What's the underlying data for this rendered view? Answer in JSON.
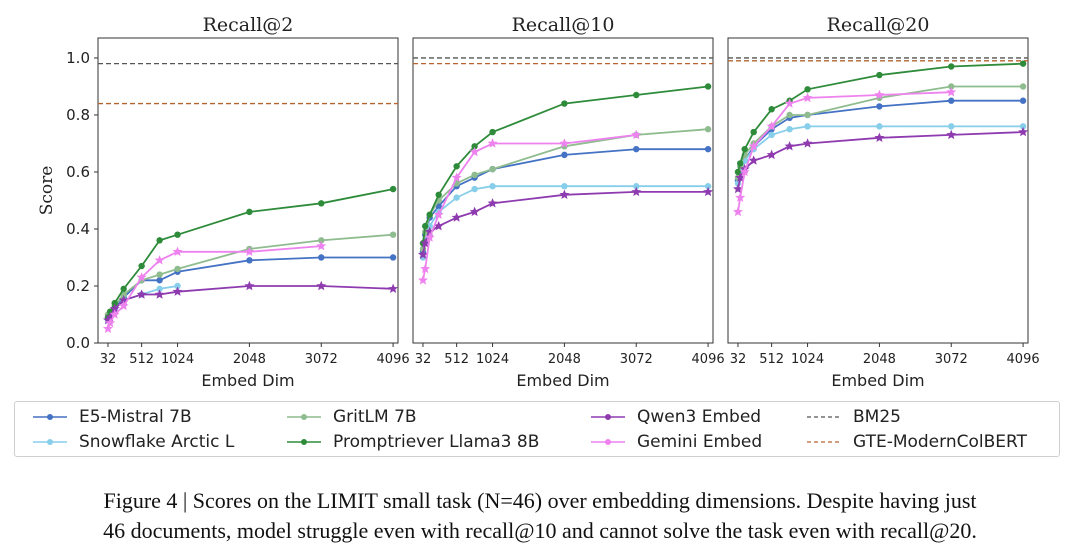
{
  "chart_data": [
    {
      "type": "line",
      "title": "Recall@2",
      "xlabel": "Embed Dim",
      "ylabel": "Score",
      "ylim": [
        0,
        1.07
      ],
      "xlim": [
        -110,
        4166
      ],
      "xticks": [
        32,
        512,
        1024,
        2048,
        3072,
        4096
      ],
      "xtick_labels": [
        "32",
        "512",
        "1024",
        "2048",
        "3072",
        "4096"
      ],
      "yticks": [
        0.0,
        0.2,
        0.4,
        0.6,
        0.8,
        1.0
      ],
      "ytick_labels": [
        "0.0",
        "0.2",
        "0.4",
        "0.6",
        "0.8",
        "1.0"
      ],
      "grid": false,
      "hlines": [
        {
          "name": "BM25",
          "y": 0.98,
          "color": "#555555"
        },
        {
          "name": "GTE-ModernColBERT",
          "y": 0.84,
          "color": "#b5652d"
        }
      ],
      "series": [
        {
          "name": "E5-Mistral 7B",
          "x": [
            32,
            64,
            128,
            256,
            512,
            768,
            1024,
            2048,
            3072,
            4096
          ],
          "y": [
            0.09,
            0.1,
            0.12,
            0.16,
            0.22,
            0.22,
            0.25,
            0.29,
            0.3,
            0.3
          ]
        },
        {
          "name": "Snowflake Arctic L",
          "x": [
            32,
            64,
            128,
            256,
            512,
            768,
            1024
          ],
          "y": [
            0.08,
            0.1,
            0.12,
            0.15,
            0.17,
            0.19,
            0.2
          ]
        },
        {
          "name": "GritLM 7B",
          "x": [
            32,
            64,
            128,
            256,
            512,
            768,
            1024,
            2048,
            3072,
            4096
          ],
          "y": [
            0.1,
            0.11,
            0.13,
            0.17,
            0.22,
            0.24,
            0.26,
            0.33,
            0.36,
            0.38
          ]
        },
        {
          "name": "Promptriever Llama3 8B",
          "x": [
            32,
            64,
            128,
            256,
            512,
            768,
            1024,
            2048,
            3072,
            4096
          ],
          "y": [
            0.09,
            0.11,
            0.14,
            0.19,
            0.27,
            0.36,
            0.38,
            0.46,
            0.49,
            0.54
          ]
        },
        {
          "name": "Qwen3 Embed",
          "x": [
            32,
            64,
            128,
            256,
            512,
            768,
            1024,
            2048,
            3072,
            4096
          ],
          "y": [
            0.08,
            0.09,
            0.12,
            0.15,
            0.17,
            0.17,
            0.18,
            0.2,
            0.2,
            0.19
          ]
        },
        {
          "name": "Gemini Embed",
          "x": [
            32,
            64,
            128,
            256,
            512,
            768,
            1024,
            2048,
            3072
          ],
          "y": [
            0.05,
            0.07,
            0.1,
            0.13,
            0.23,
            0.29,
            0.32,
            0.32,
            0.34
          ]
        }
      ]
    },
    {
      "type": "line",
      "title": "Recall@10",
      "xlabel": "Embed Dim",
      "ylabel": "",
      "ylim": [
        0,
        1.07
      ],
      "xlim": [
        -110,
        4166
      ],
      "xticks": [
        32,
        512,
        1024,
        2048,
        3072,
        4096
      ],
      "xtick_labels": [
        "32",
        "512",
        "1024",
        "2048",
        "3072",
        "4096"
      ],
      "grid": false,
      "hlines": [
        {
          "name": "BM25",
          "y": 1.0,
          "color": "#555555"
        },
        {
          "name": "GTE-ModernColBERT",
          "y": 0.98,
          "color": "#b5652d"
        }
      ],
      "series": [
        {
          "name": "E5-Mistral 7B",
          "x": [
            32,
            64,
            128,
            256,
            512,
            768,
            1024,
            2048,
            3072,
            4096
          ],
          "y": [
            0.32,
            0.38,
            0.44,
            0.48,
            0.55,
            0.58,
            0.61,
            0.66,
            0.68,
            0.68
          ]
        },
        {
          "name": "Snowflake Arctic L",
          "x": [
            32,
            64,
            128,
            256,
            512,
            768,
            1024,
            2048,
            3072,
            4096
          ],
          "y": [
            0.3,
            0.36,
            0.41,
            0.46,
            0.51,
            0.54,
            0.55,
            0.55,
            0.55,
            0.55
          ]
        },
        {
          "name": "GritLM 7B",
          "x": [
            32,
            64,
            128,
            256,
            512,
            768,
            1024,
            2048,
            3072,
            4096
          ],
          "y": [
            0.33,
            0.39,
            0.45,
            0.5,
            0.56,
            0.59,
            0.61,
            0.69,
            0.73,
            0.75
          ]
        },
        {
          "name": "Promptriever Llama3 8B",
          "x": [
            32,
            64,
            128,
            256,
            512,
            768,
            1024,
            2048,
            3072,
            4096
          ],
          "y": [
            0.35,
            0.41,
            0.45,
            0.52,
            0.62,
            0.69,
            0.74,
            0.84,
            0.87,
            0.9
          ]
        },
        {
          "name": "Qwen3 Embed",
          "x": [
            32,
            64,
            128,
            256,
            512,
            768,
            1024,
            2048,
            3072,
            4096
          ],
          "y": [
            0.31,
            0.35,
            0.39,
            0.41,
            0.44,
            0.46,
            0.49,
            0.52,
            0.53,
            0.53
          ]
        },
        {
          "name": "Gemini Embed",
          "x": [
            32,
            64,
            128,
            256,
            512,
            768,
            1024,
            2048,
            3072
          ],
          "y": [
            0.22,
            0.26,
            0.37,
            0.45,
            0.58,
            0.67,
            0.7,
            0.7,
            0.73
          ]
        }
      ]
    },
    {
      "type": "line",
      "title": "Recall@20",
      "xlabel": "Embed Dim",
      "ylabel": "",
      "ylim": [
        0,
        1.07
      ],
      "xlim": [
        -110,
        4166
      ],
      "xticks": [
        32,
        512,
        1024,
        2048,
        3072,
        4096
      ],
      "xtick_labels": [
        "32",
        "512",
        "1024",
        "2048",
        "3072",
        "4096"
      ],
      "grid": false,
      "hlines": [
        {
          "name": "BM25",
          "y": 1.0,
          "color": "#555555"
        },
        {
          "name": "GTE-ModernColBERT",
          "y": 0.99,
          "color": "#b5652d"
        }
      ],
      "series": [
        {
          "name": "E5-Mistral 7B",
          "x": [
            32,
            64,
            128,
            256,
            512,
            768,
            1024,
            2048,
            3072,
            4096
          ],
          "y": [
            0.57,
            0.6,
            0.64,
            0.69,
            0.75,
            0.79,
            0.8,
            0.83,
            0.85,
            0.85
          ]
        },
        {
          "name": "Snowflake Arctic L",
          "x": [
            32,
            64,
            128,
            256,
            512,
            768,
            1024,
            2048,
            3072,
            4096
          ],
          "y": [
            0.56,
            0.6,
            0.64,
            0.68,
            0.73,
            0.75,
            0.76,
            0.76,
            0.76,
            0.76
          ]
        },
        {
          "name": "GritLM 7B",
          "x": [
            32,
            64,
            128,
            256,
            512,
            768,
            1024,
            2048,
            3072,
            4096
          ],
          "y": [
            0.58,
            0.62,
            0.66,
            0.7,
            0.76,
            0.8,
            0.8,
            0.86,
            0.9,
            0.9
          ]
        },
        {
          "name": "Promptriever Llama3 8B",
          "x": [
            32,
            64,
            128,
            256,
            512,
            768,
            1024,
            2048,
            3072,
            4096
          ],
          "y": [
            0.6,
            0.63,
            0.68,
            0.74,
            0.82,
            0.85,
            0.89,
            0.94,
            0.97,
            0.98
          ]
        },
        {
          "name": "Qwen3 Embed",
          "x": [
            32,
            64,
            128,
            256,
            512,
            768,
            1024,
            2048,
            3072,
            4096
          ],
          "y": [
            0.54,
            0.58,
            0.61,
            0.64,
            0.66,
            0.69,
            0.7,
            0.72,
            0.73,
            0.74
          ]
        },
        {
          "name": "Gemini Embed",
          "x": [
            32,
            64,
            128,
            256,
            512,
            768,
            1024,
            2048,
            3072
          ],
          "y": [
            0.46,
            0.51,
            0.6,
            0.69,
            0.76,
            0.84,
            0.86,
            0.87,
            0.88
          ]
        }
      ]
    }
  ],
  "legend": {
    "items": [
      {
        "label": "E5-Mistral 7B",
        "color": "#4472c4",
        "marker": "circle",
        "style": "solid"
      },
      {
        "label": "Snowflake Arctic L",
        "color": "#87ceeb",
        "marker": "circle",
        "style": "solid"
      },
      {
        "label": "GritLM 7B",
        "color": "#8fbc8f",
        "marker": "circle",
        "style": "solid"
      },
      {
        "label": "Promptriever Llama3 8B",
        "color": "#2e8b3a",
        "marker": "circle",
        "style": "solid"
      },
      {
        "label": "Qwen3 Embed",
        "color": "#8e3bb0",
        "marker": "circle",
        "style": "solid"
      },
      {
        "label": "Gemini Embed",
        "color": "#ee82ee",
        "marker": "circle",
        "style": "solid"
      },
      {
        "label": "BM25",
        "color": "#555555",
        "marker": "none",
        "style": "dashed"
      },
      {
        "label": "GTE-ModernColBERT",
        "color": "#b5652d",
        "marker": "none",
        "style": "dashed"
      }
    ]
  },
  "series_styles": {
    "E5-Mistral 7B": {
      "color": "#4472c4",
      "marker": "circle"
    },
    "Snowflake Arctic L": {
      "color": "#87ceeb",
      "marker": "circle"
    },
    "GritLM 7B": {
      "color": "#8fbc8f",
      "marker": "circle"
    },
    "Promptriever Llama3 8B": {
      "color": "#2e8b3a",
      "marker": "circle"
    },
    "Qwen3 Embed": {
      "color": "#8e3bb0",
      "marker": "star"
    },
    "Gemini Embed": {
      "color": "#ee82ee",
      "marker": "star"
    }
  },
  "caption": {
    "line1": "Figure 4 | Scores on the LIMIT small task (N=46) over embedding dimensions. Despite having just",
    "line2": "46 documents, model struggle even with recall@10 and cannot solve the task even with recall@20."
  }
}
